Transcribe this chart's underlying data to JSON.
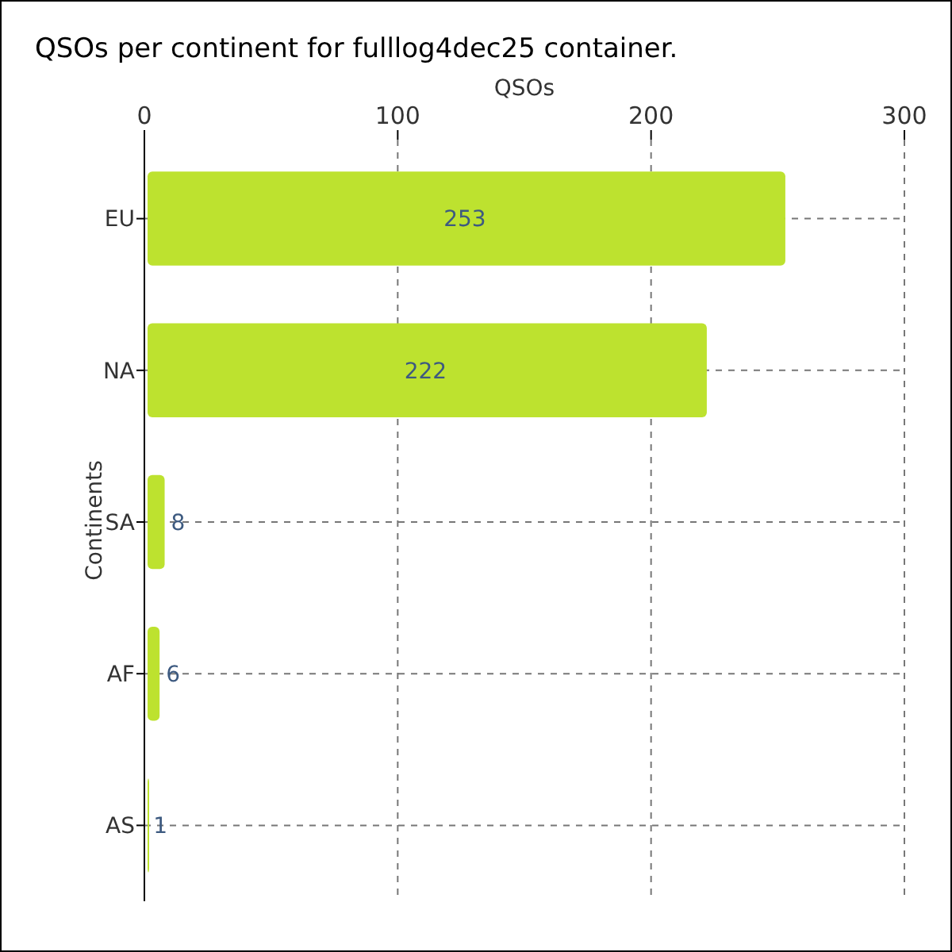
{
  "chart_data": {
    "type": "bar",
    "orientation": "horizontal",
    "title": "QSOs per continent for fulllog4dec25 container.",
    "xlabel": "QSOs",
    "ylabel": "Continents",
    "categories": [
      "EU",
      "NA",
      "SA",
      "AF",
      "AS"
    ],
    "values": [
      253,
      222,
      8,
      6,
      1
    ],
    "color": "#bde22f",
    "xlim": [
      0,
      300
    ],
    "xticks": [
      0,
      100,
      200,
      300
    ],
    "grid": true,
    "data_labels": true
  }
}
